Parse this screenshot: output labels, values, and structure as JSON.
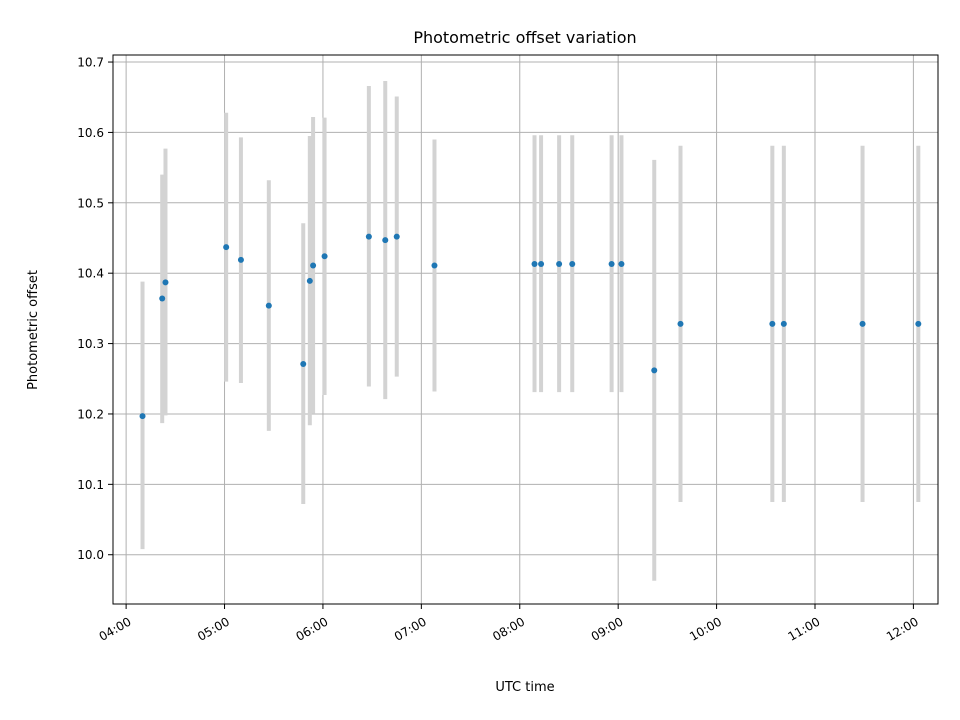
{
  "chart_data": {
    "type": "scatter",
    "title": "Photometric offset variation",
    "xlabel": "UTC time",
    "ylabel": "Photometric offset",
    "grid": true,
    "x_tick_labels": [
      "04:00",
      "05:00",
      "06:00",
      "07:00",
      "08:00",
      "09:00",
      "10:00",
      "11:00",
      "12:00"
    ],
    "x_ticks": [
      "04:00",
      "05:00",
      "06:00",
      "07:00",
      "08:00",
      "09:00",
      "10:00",
      "11:00",
      "12:00"
    ],
    "y_ticks": [
      10.0,
      10.1,
      10.2,
      10.3,
      10.4,
      10.5,
      10.6,
      10.7
    ],
    "xlim": [
      "03:52",
      "12:15"
    ],
    "ylim": [
      9.93,
      10.71
    ],
    "colors": {
      "points": "#1f77b4",
      "errorbars": "#d3d3d3"
    },
    "points": [
      {
        "x": "04:10",
        "y": 10.197,
        "ylow": 10.008,
        "yhigh": 10.388
      },
      {
        "x": "04:22",
        "y": 10.364,
        "ylow": 10.187,
        "yhigh": 10.54
      },
      {
        "x": "04:24",
        "y": 10.387,
        "ylow": 10.198,
        "yhigh": 10.577
      },
      {
        "x": "05:01",
        "y": 10.437,
        "ylow": 10.246,
        "yhigh": 10.628
      },
      {
        "x": "05:10",
        "y": 10.419,
        "ylow": 10.244,
        "yhigh": 10.593
      },
      {
        "x": "05:27",
        "y": 10.354,
        "ylow": 10.176,
        "yhigh": 10.532
      },
      {
        "x": "05:48",
        "y": 10.271,
        "ylow": 10.072,
        "yhigh": 10.471
      },
      {
        "x": "05:52",
        "y": 10.389,
        "ylow": 10.184,
        "yhigh": 10.595
      },
      {
        "x": "05:54",
        "y": 10.411,
        "ylow": 10.201,
        "yhigh": 10.622
      },
      {
        "x": "06:01",
        "y": 10.424,
        "ylow": 10.227,
        "yhigh": 10.621
      },
      {
        "x": "06:28",
        "y": 10.452,
        "ylow": 10.239,
        "yhigh": 10.666
      },
      {
        "x": "06:38",
        "y": 10.447,
        "ylow": 10.221,
        "yhigh": 10.673
      },
      {
        "x": "06:45",
        "y": 10.452,
        "ylow": 10.253,
        "yhigh": 10.651
      },
      {
        "x": "07:08",
        "y": 10.411,
        "ylow": 10.232,
        "yhigh": 10.59
      },
      {
        "x": "08:09",
        "y": 10.413,
        "ylow": 10.231,
        "yhigh": 10.596
      },
      {
        "x": "08:13",
        "y": 10.413,
        "ylow": 10.231,
        "yhigh": 10.596
      },
      {
        "x": "08:24",
        "y": 10.413,
        "ylow": 10.231,
        "yhigh": 10.596
      },
      {
        "x": "08:32",
        "y": 10.413,
        "ylow": 10.231,
        "yhigh": 10.596
      },
      {
        "x": "08:56",
        "y": 10.413,
        "ylow": 10.231,
        "yhigh": 10.596
      },
      {
        "x": "09:02",
        "y": 10.413,
        "ylow": 10.231,
        "yhigh": 10.596
      },
      {
        "x": "09:22",
        "y": 10.262,
        "ylow": 9.963,
        "yhigh": 10.561
      },
      {
        "x": "09:38",
        "y": 10.328,
        "ylow": 10.075,
        "yhigh": 10.581
      },
      {
        "x": "10:34",
        "y": 10.328,
        "ylow": 10.075,
        "yhigh": 10.581
      },
      {
        "x": "10:41",
        "y": 10.328,
        "ylow": 10.075,
        "yhigh": 10.581
      },
      {
        "x": "11:29",
        "y": 10.328,
        "ylow": 10.075,
        "yhigh": 10.581
      },
      {
        "x": "12:03",
        "y": 10.328,
        "ylow": 10.075,
        "yhigh": 10.581
      }
    ]
  }
}
